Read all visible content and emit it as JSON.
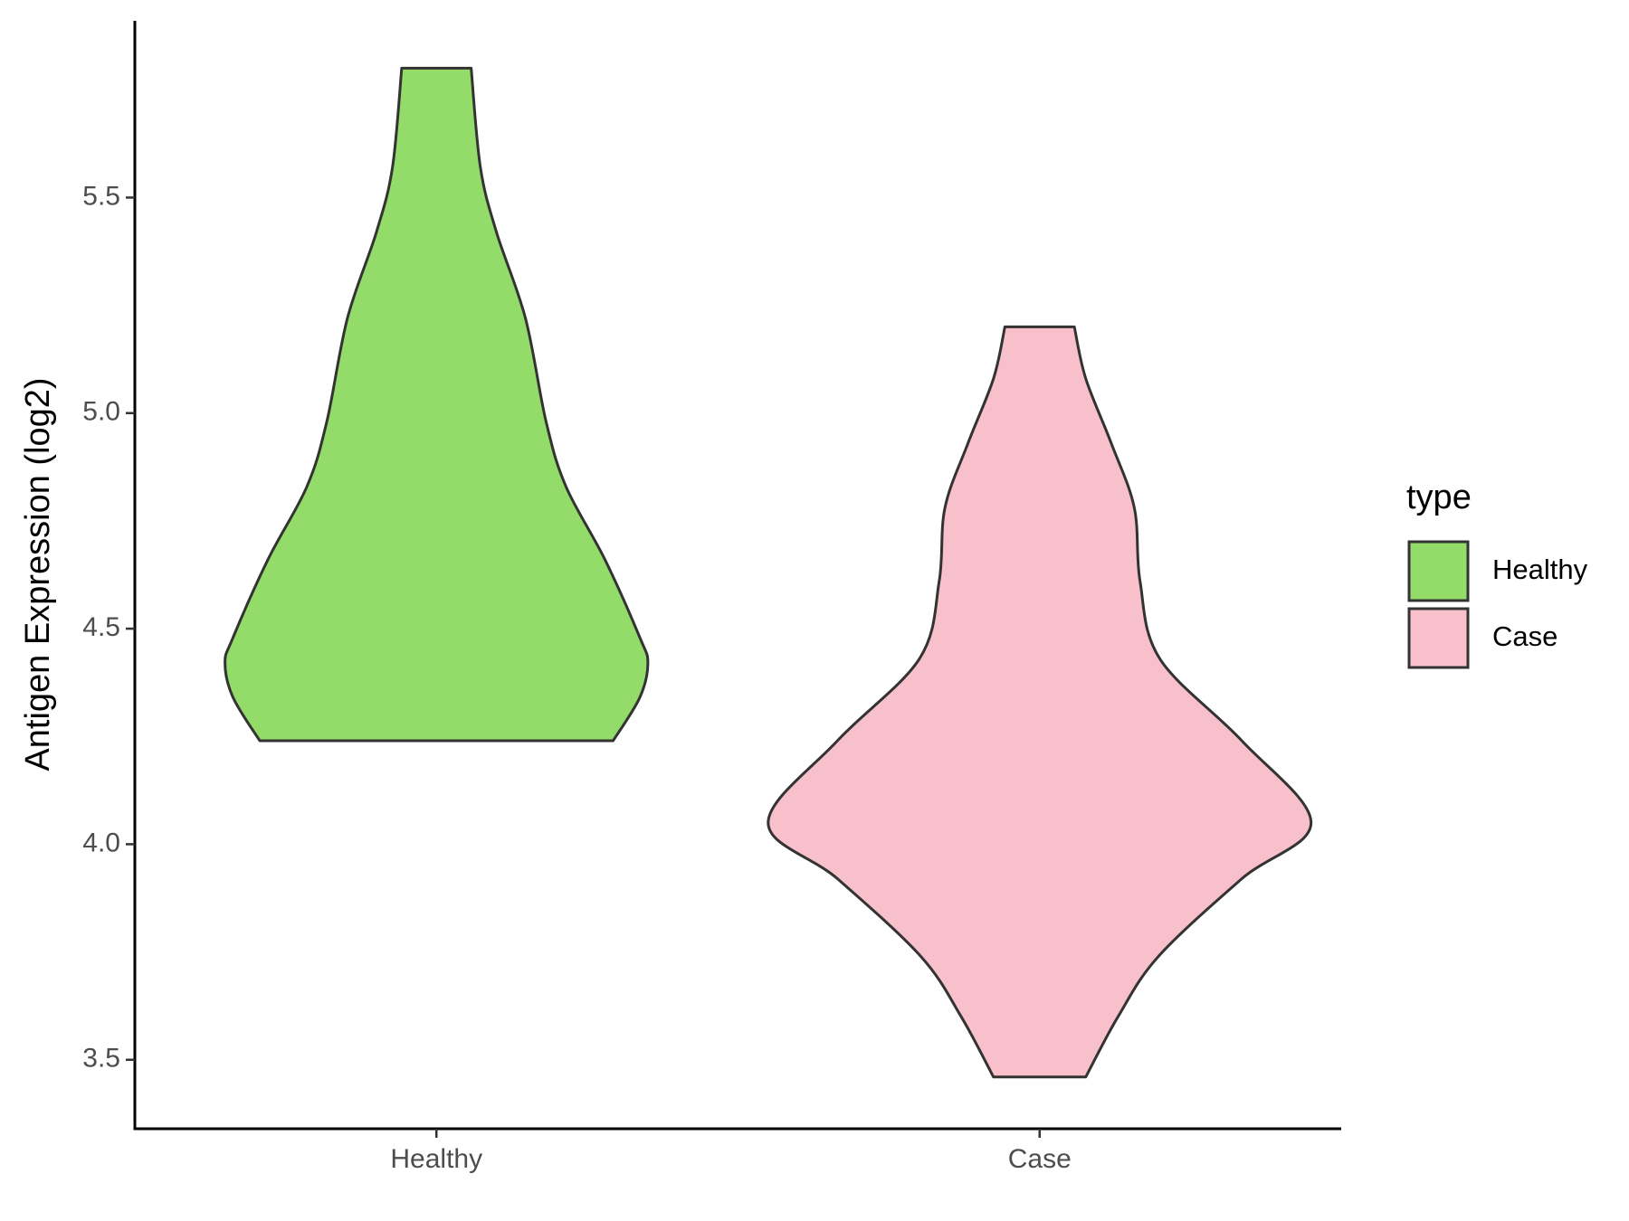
{
  "chart_data": {
    "type": "violin",
    "y_label": "Antigen Expression (log2)",
    "categories": [
      "Healthy",
      "Case"
    ],
    "legend_title": "type",
    "legend_position": "right",
    "ylim": [
      3.34,
      5.91
    ],
    "yticks": [
      3.5,
      {
        "value": 4,
        "label": "4.0"
      },
      4.5,
      {
        "value": 5,
        "label": "5.0"
      },
      5.5
    ],
    "grid": false,
    "series": [
      {
        "name": "Healthy",
        "color": "#94dc6a",
        "y": [
          5.8,
          5.57,
          5.42,
          5.22,
          4.98,
          4.83,
          4.66,
          4.48,
          4.42,
          4.34,
          4.24
        ],
        "density": [
          0.128,
          0.162,
          0.221,
          0.328,
          0.404,
          0.477,
          0.621,
          0.749,
          0.779,
          0.749,
          0.651
        ]
      },
      {
        "name": "Case",
        "color": "#f7c0cb",
        "y": [
          5.2,
          5.08,
          4.93,
          4.78,
          4.61,
          4.43,
          4.24,
          4.05,
          3.92,
          3.74,
          3.6,
          3.46
        ],
        "density": [
          0.128,
          0.17,
          0.264,
          0.349,
          0.37,
          0.443,
          0.745,
          1.0,
          0.745,
          0.438,
          0.289,
          0.17
        ]
      }
    ]
  }
}
